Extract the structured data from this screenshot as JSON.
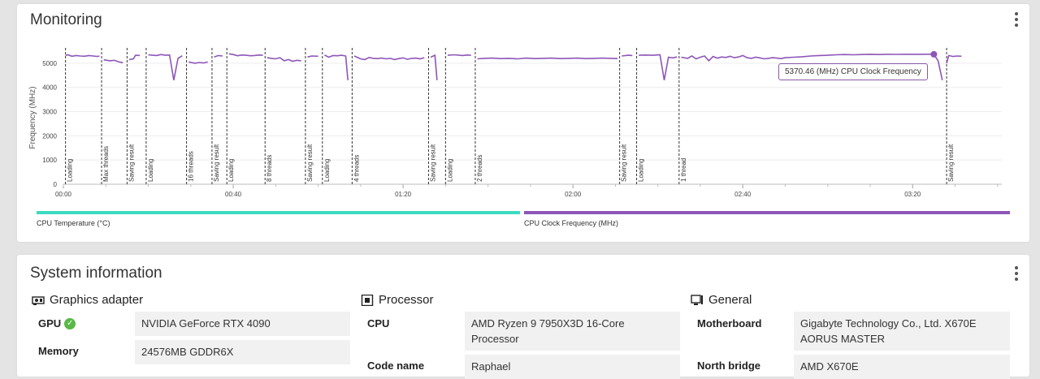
{
  "monitoring": {
    "title": "Monitoring",
    "tooltip": "5370.46 (MHz) CPU Clock Frequency",
    "legend": [
      {
        "label": "CPU Temperature (°C)",
        "color": "#3ddbc0"
      },
      {
        "label": "CPU Clock Frequency (MHz)",
        "color": "#8e56b8"
      }
    ]
  },
  "chart_data": {
    "type": "line",
    "ylabel": "Frequency (MHz)",
    "ylim": [
      0,
      5500
    ],
    "y_ticks": [
      "0",
      "1000",
      "2000",
      "3000",
      "4000",
      "5000"
    ],
    "x_ticks": [
      "00:00",
      "00:40",
      "01:20",
      "02:00",
      "02:40",
      "03:20"
    ],
    "xlim_seconds": [
      0,
      221
    ],
    "line_color": "#8e56b8",
    "markers": [
      {
        "t": 0.5,
        "label": "Loading"
      },
      {
        "t": 9,
        "label": "Max threads"
      },
      {
        "t": 15,
        "label": "Saving result"
      },
      {
        "t": 19.5,
        "label": "Loading"
      },
      {
        "t": 29,
        "label": "16 threads"
      },
      {
        "t": 35,
        "label": "Saving result"
      },
      {
        "t": 38.5,
        "label": "Loading"
      },
      {
        "t": 47.5,
        "label": "8 threads"
      },
      {
        "t": 57,
        "label": "Saving result"
      },
      {
        "t": 61,
        "label": "Loading"
      },
      {
        "t": 68,
        "label": "4 threads"
      },
      {
        "t": 86,
        "label": "Saving result"
      },
      {
        "t": 90,
        "label": "Loading"
      },
      {
        "t": 97,
        "label": "2 threads"
      },
      {
        "t": 131,
        "label": "Saving result"
      },
      {
        "t": 135,
        "label": "Loading"
      },
      {
        "t": 145,
        "label": "1 thread"
      },
      {
        "t": 208,
        "label": "Saving result"
      }
    ],
    "series": [
      {
        "name": "CPU Clock Frequency (MHz)",
        "points": [
          [
            0.5,
            5320
          ],
          [
            1,
            5350
          ],
          [
            2,
            5290
          ],
          [
            3,
            5320
          ],
          [
            4,
            5300
          ],
          [
            5,
            5290
          ],
          [
            6,
            5320
          ],
          [
            7,
            5300
          ],
          [
            8,
            5280
          ],
          [
            8.5,
            5300
          ],
          [
            9.5,
            5140
          ],
          [
            11,
            5100
          ],
          [
            12,
            5120
          ],
          [
            13,
            5060
          ],
          [
            14,
            5020
          ],
          [
            15.5,
            5150
          ],
          [
            16.5,
            5180
          ],
          [
            17,
            5330
          ],
          [
            18,
            5320
          ],
          [
            20,
            5350
          ],
          [
            21,
            5330
          ],
          [
            22,
            5320
          ],
          [
            23,
            5360
          ],
          [
            24,
            5330
          ],
          [
            25,
            5340
          ],
          [
            26,
            4300
          ],
          [
            27,
            5200
          ],
          [
            28,
            5310
          ],
          [
            29.5,
            5050
          ],
          [
            31,
            5000
          ],
          [
            32,
            5030
          ],
          [
            33,
            5010
          ],
          [
            34,
            5050
          ],
          [
            35.5,
            5260
          ],
          [
            36.5,
            5320
          ],
          [
            37.5,
            5300
          ],
          [
            39,
            5390
          ],
          [
            40,
            5360
          ],
          [
            41,
            5310
          ],
          [
            42,
            5340
          ],
          [
            43,
            5330
          ],
          [
            44,
            5310
          ],
          [
            45,
            5320
          ],
          [
            46,
            5340
          ],
          [
            47,
            5330
          ],
          [
            48,
            5230
          ],
          [
            49,
            5200
          ],
          [
            50,
            5180
          ],
          [
            51,
            5230
          ],
          [
            52,
            5100
          ],
          [
            53,
            5150
          ],
          [
            54,
            5080
          ],
          [
            55,
            5120
          ],
          [
            56,
            5100
          ],
          [
            57.5,
            5260
          ],
          [
            58.5,
            5300
          ],
          [
            60,
            5290
          ],
          [
            61.5,
            5340
          ],
          [
            62.5,
            5250
          ],
          [
            63.5,
            5320
          ],
          [
            64.5,
            5310
          ],
          [
            65.5,
            5330
          ],
          [
            66.5,
            5300
          ],
          [
            67,
            4300
          ],
          [
            68.5,
            5300
          ],
          [
            70,
            5180
          ],
          [
            71,
            5150
          ],
          [
            72,
            5240
          ],
          [
            73,
            5200
          ],
          [
            74,
            5190
          ],
          [
            75,
            5210
          ],
          [
            76,
            5180
          ],
          [
            77,
            5200
          ],
          [
            78,
            5150
          ],
          [
            79,
            5190
          ],
          [
            80,
            5220
          ],
          [
            81,
            5160
          ],
          [
            82,
            5200
          ],
          [
            83,
            5210
          ],
          [
            84,
            5180
          ],
          [
            85,
            5230
          ],
          [
            86.5,
            5250
          ],
          [
            87.5,
            5330
          ],
          [
            88,
            4300
          ],
          [
            90.5,
            5330
          ],
          [
            92,
            5350
          ],
          [
            94,
            5320
          ],
          [
            95,
            5340
          ],
          [
            96,
            5330
          ],
          [
            97.5,
            5180
          ],
          [
            99,
            5200
          ],
          [
            101,
            5210
          ],
          [
            103,
            5190
          ],
          [
            105,
            5200
          ],
          [
            107,
            5180
          ],
          [
            109,
            5210
          ],
          [
            111,
            5190
          ],
          [
            113,
            5200
          ],
          [
            115,
            5210
          ],
          [
            117,
            5190
          ],
          [
            119,
            5200
          ],
          [
            121,
            5210
          ],
          [
            123,
            5190
          ],
          [
            125,
            5200
          ],
          [
            127,
            5210
          ],
          [
            129,
            5200
          ],
          [
            130.5,
            5190
          ],
          [
            131.5,
            5300
          ],
          [
            133,
            5330
          ],
          [
            134,
            5320
          ],
          [
            135.5,
            5330
          ],
          [
            137,
            5340
          ],
          [
            139,
            5330
          ],
          [
            140.5,
            5350
          ],
          [
            141.5,
            4300
          ],
          [
            142.5,
            5250
          ],
          [
            143.5,
            5220
          ],
          [
            144.5,
            5260
          ],
          [
            145.5,
            5250
          ],
          [
            147,
            5200
          ],
          [
            148,
            5300
          ],
          [
            149,
            5180
          ],
          [
            150,
            5250
          ],
          [
            151,
            5300
          ],
          [
            152,
            5100
          ],
          [
            153,
            5280
          ],
          [
            154,
            5210
          ],
          [
            155,
            5260
          ],
          [
            156,
            5240
          ],
          [
            157,
            5290
          ],
          [
            158,
            5230
          ],
          [
            159,
            5260
          ],
          [
            160,
            5320
          ],
          [
            161,
            5230
          ],
          [
            162,
            5200
          ],
          [
            163,
            5250
          ],
          [
            164,
            5220
          ],
          [
            165,
            5180
          ],
          [
            166,
            5200
          ],
          [
            167,
            5230
          ],
          [
            168,
            5210
          ],
          [
            169,
            5190
          ],
          [
            170,
            5230
          ],
          [
            172,
            5250
          ],
          [
            174,
            5270
          ],
          [
            176,
            5300
          ],
          [
            178,
            5320
          ],
          [
            180,
            5330
          ],
          [
            182,
            5350
          ],
          [
            184,
            5360
          ],
          [
            186,
            5350
          ],
          [
            188,
            5360
          ],
          [
            190,
            5370
          ],
          [
            192,
            5360
          ],
          [
            194,
            5370
          ],
          [
            196,
            5365
          ],
          [
            198,
            5370
          ],
          [
            200,
            5368
          ],
          [
            202,
            5370
          ],
          [
            204,
            5372
          ],
          [
            205,
            5370.46
          ],
          [
            206,
            5100
          ],
          [
            207,
            4300
          ],
          [
            208,
            5000
          ],
          [
            208.5,
            5320
          ],
          [
            209.5,
            5280
          ],
          [
            210.5,
            5300
          ],
          [
            211.5,
            5290
          ]
        ]
      }
    ]
  },
  "system_info": {
    "title": "System information",
    "sections": [
      {
        "title": "Graphics adapter",
        "icon": "gpu-icon",
        "rows": [
          {
            "label": "GPU",
            "value": "NVIDIA GeForce RTX 4090",
            "verified": true
          },
          {
            "label": "Memory",
            "value": "24576MB GDDR6X"
          }
        ]
      },
      {
        "title": "Processor",
        "icon": "cpu-icon",
        "rows": [
          {
            "label": "CPU",
            "value": "AMD Ryzen 9 7950X3D 16-Core Processor"
          },
          {
            "label": "Code name",
            "value": "Raphael"
          }
        ]
      },
      {
        "title": "General",
        "icon": "monitor-icon",
        "rows": [
          {
            "label": "Motherboard",
            "value": "Gigabyte Technology Co., Ltd. X670E AORUS MASTER"
          },
          {
            "label": "North bridge",
            "value": "AMD X670E"
          }
        ]
      }
    ]
  }
}
